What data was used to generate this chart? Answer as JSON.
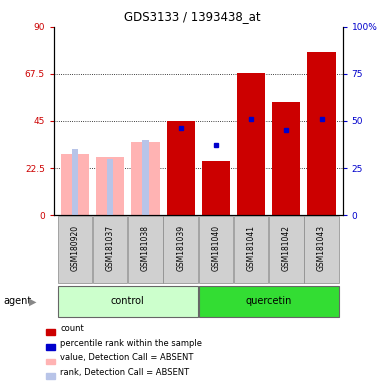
{
  "title": "GDS3133 / 1393438_at",
  "samples": [
    "GSM180920",
    "GSM181037",
    "GSM181038",
    "GSM181039",
    "GSM181040",
    "GSM181041",
    "GSM181042",
    "GSM181043"
  ],
  "groups": [
    "control",
    "control",
    "control",
    "control",
    "quercetin",
    "quercetin",
    "quercetin",
    "quercetin"
  ],
  "count_values": [
    0,
    0,
    0,
    45,
    26,
    68,
    54,
    78
  ],
  "rank_values_pct": [
    35,
    30,
    40,
    46,
    37,
    51,
    45,
    51
  ],
  "absent_value": [
    29,
    28,
    35,
    0,
    0,
    0,
    0,
    0
  ],
  "absent_rank_pct": [
    35,
    30,
    40,
    0,
    0,
    0,
    0,
    0
  ],
  "detection_absent": [
    true,
    true,
    true,
    false,
    false,
    false,
    false,
    false
  ],
  "ylim_left": [
    0,
    90
  ],
  "ylim_right": [
    0,
    100
  ],
  "yticks_left": [
    0,
    22.5,
    45,
    67.5,
    90
  ],
  "ytick_labels_left": [
    "0",
    "22.5",
    "45",
    "67.5",
    "90"
  ],
  "yticks_right": [
    0,
    25,
    50,
    75,
    100
  ],
  "ytick_labels_right": [
    "0",
    "25",
    "50",
    "75",
    "100%"
  ],
  "count_color": "#cc0000",
  "rank_color": "#0000cc",
  "absent_value_color": "#ffb3b3",
  "absent_rank_color": "#b8c4e8",
  "control_bg": "#ccffcc",
  "quercetin_bg": "#33dd33",
  "sample_box_bg": "#d0d0d0",
  "legend_items": [
    {
      "label": "count",
      "color": "#cc0000"
    },
    {
      "label": "percentile rank within the sample",
      "color": "#0000cc"
    },
    {
      "label": "value, Detection Call = ABSENT",
      "color": "#ffb3b3"
    },
    {
      "label": "rank, Detection Call = ABSENT",
      "color": "#b8c4e8"
    }
  ]
}
